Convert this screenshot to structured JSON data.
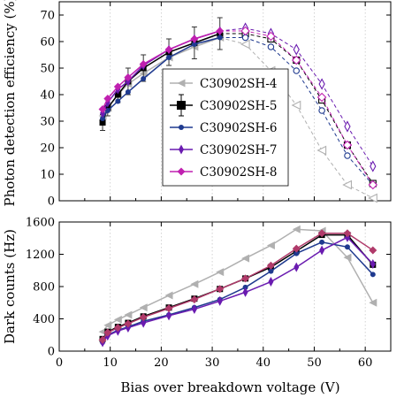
{
  "chart_data": [
    {
      "type": "line",
      "ylabel": "Photon detection efficiency (%)",
      "xlabel": "",
      "xlim": [
        0,
        65
      ],
      "ylim": [
        0,
        75
      ],
      "yticks": [
        0,
        10,
        20,
        30,
        40,
        50,
        60,
        70
      ],
      "grid": "vertical dotted",
      "legend_position": "center",
      "series": [
        {
          "name": "C30902SH-4",
          "color": "#b0b0b0",
          "marker": "triangle-left",
          "solid": [
            [
              8.5,
              32
            ],
            [
              9.5,
              35
            ],
            [
              11.5,
              40
            ],
            [
              13.5,
              44
            ],
            [
              16.5,
              48
            ],
            [
              21.5,
              54
            ],
            [
              26.5,
              58
            ],
            [
              31.5,
              61.5
            ]
          ],
          "dashed": [
            [
              31.5,
              61.5
            ],
            [
              36.5,
              59
            ],
            [
              41.5,
              49
            ],
            [
              46.5,
              36
            ],
            [
              51.5,
              19
            ],
            [
              56.5,
              6
            ],
            [
              61.5,
              1
            ]
          ]
        },
        {
          "name": "C30902SH-5",
          "color": "#000000",
          "marker": "square",
          "errorbars": true,
          "solid": [
            [
              8.5,
              29.5
            ],
            [
              9.5,
              35
            ],
            [
              11.5,
              40
            ],
            [
              13.5,
              45
            ],
            [
              16.5,
              50
            ],
            [
              21.5,
              56
            ],
            [
              26.5,
              59.5
            ],
            [
              31.5,
              63
            ]
          ],
          "errors": [
            3,
            3,
            3,
            5,
            5,
            5,
            6,
            6
          ],
          "dashed": [
            [
              31.5,
              63
            ],
            [
              36.5,
              63
            ],
            [
              41.5,
              61
            ],
            [
              46.5,
              53
            ],
            [
              51.5,
              38
            ],
            [
              56.5,
              21
            ],
            [
              61.5,
              6.5
            ]
          ]
        },
        {
          "name": "C30902SH-6",
          "color": "#1f3a8f",
          "marker": "circle",
          "solid": [
            [
              8.5,
              31
            ],
            [
              9.5,
              34
            ],
            [
              11.5,
              37.5
            ],
            [
              13.5,
              41
            ],
            [
              16.5,
              46
            ],
            [
              21.5,
              54
            ],
            [
              26.5,
              59
            ],
            [
              31.5,
              61.5
            ]
          ],
          "dashed": [
            [
              31.5,
              61.5
            ],
            [
              36.5,
              61.5
            ],
            [
              41.5,
              58
            ],
            [
              46.5,
              49
            ],
            [
              51.5,
              34
            ],
            [
              56.5,
              17
            ],
            [
              61.5,
              6
            ]
          ]
        },
        {
          "name": "C30902SH-7",
          "color": "#6a1bb0",
          "marker": "diamond-thin",
          "solid": [
            [
              8.5,
              33
            ],
            [
              9.5,
              37
            ],
            [
              11.5,
              42
            ],
            [
              13.5,
              45
            ],
            [
              16.5,
              51
            ],
            [
              21.5,
              57
            ],
            [
              26.5,
              61
            ],
            [
              31.5,
              64
            ]
          ],
          "dashed": [
            [
              31.5,
              64
            ],
            [
              36.5,
              65
            ],
            [
              41.5,
              63
            ],
            [
              46.5,
              57
            ],
            [
              51.5,
              44
            ],
            [
              56.5,
              28
            ],
            [
              61.5,
              13
            ]
          ]
        },
        {
          "name": "C30902SH-8",
          "color": "#c020b0",
          "marker": "diamond",
          "solid": [
            [
              8.5,
              34.5
            ],
            [
              9.5,
              38.5
            ],
            [
              11.5,
              43
            ],
            [
              13.5,
              46.5
            ],
            [
              16.5,
              51.5
            ],
            [
              21.5,
              57
            ],
            [
              26.5,
              61
            ],
            [
              31.5,
              64
            ]
          ],
          "dashed": [
            [
              31.5,
              64
            ],
            [
              36.5,
              64
            ],
            [
              41.5,
              62
            ],
            [
              46.5,
              53
            ],
            [
              51.5,
              39
            ],
            [
              56.5,
              21
            ],
            [
              61.5,
              6
            ]
          ]
        }
      ]
    },
    {
      "type": "line",
      "ylabel": "Dark counts (Hz)",
      "xlabel": "Bias over breakdown voltage (V)",
      "xlim": [
        0,
        65
      ],
      "ylim": [
        0,
        1600
      ],
      "xticks": [
        0,
        10,
        20,
        30,
        40,
        50,
        60
      ],
      "yticks": [
        0,
        400,
        800,
        1200,
        1600
      ],
      "grid": "vertical dotted",
      "series": [
        {
          "name": "C30902SH-4",
          "color": "#b0b0b0",
          "marker": "triangle-left",
          "points": [
            [
              8.5,
              240
            ],
            [
              9.5,
              320
            ],
            [
              11.5,
              390
            ],
            [
              13.5,
              450
            ],
            [
              16.5,
              540
            ],
            [
              21.5,
              690
            ],
            [
              26.5,
              830
            ],
            [
              31.5,
              980
            ],
            [
              36.5,
              1150
            ],
            [
              41.5,
              1310
            ],
            [
              46.5,
              1510
            ],
            [
              51.5,
              1490
            ],
            [
              56.5,
              1160
            ],
            [
              61.5,
              600
            ]
          ]
        },
        {
          "name": "C30902SH-5",
          "color": "#000000",
          "marker": "square",
          "points": [
            [
              8.5,
              150
            ],
            [
              9.5,
              240
            ],
            [
              11.5,
              300
            ],
            [
              13.5,
              350
            ],
            [
              16.5,
              430
            ],
            [
              21.5,
              540
            ],
            [
              26.5,
              650
            ],
            [
              31.5,
              770
            ],
            [
              36.5,
              900
            ],
            [
              41.5,
              1040
            ],
            [
              46.5,
              1240
            ],
            [
              51.5,
              1440
            ],
            [
              56.5,
              1440
            ],
            [
              61.5,
              1070
            ]
          ]
        },
        {
          "name": "C30902SH-6",
          "color": "#1f3a8f",
          "marker": "circle",
          "points": [
            [
              8.5,
              110
            ],
            [
              9.5,
              200
            ],
            [
              11.5,
              260
            ],
            [
              13.5,
              300
            ],
            [
              16.5,
              370
            ],
            [
              21.5,
              450
            ],
            [
              26.5,
              540
            ],
            [
              31.5,
              640
            ],
            [
              36.5,
              790
            ],
            [
              41.5,
              990
            ],
            [
              46.5,
              1210
            ],
            [
              51.5,
              1350
            ],
            [
              56.5,
              1290
            ],
            [
              61.5,
              950
            ]
          ]
        },
        {
          "name": "C30902SH-7",
          "color": "#6a1bb0",
          "marker": "diamond-thin",
          "points": [
            [
              8.5,
              110
            ],
            [
              9.5,
              190
            ],
            [
              11.5,
              250
            ],
            [
              13.5,
              290
            ],
            [
              16.5,
              350
            ],
            [
              21.5,
              440
            ],
            [
              26.5,
              520
            ],
            [
              31.5,
              620
            ],
            [
              36.5,
              730
            ],
            [
              41.5,
              860
            ],
            [
              46.5,
              1040
            ],
            [
              51.5,
              1250
            ],
            [
              56.5,
              1410
            ],
            [
              61.5,
              1080
            ]
          ]
        },
        {
          "name": "C30902SH-8",
          "color": "#b03a6a",
          "marker": "diamond",
          "points": [
            [
              8.5,
              140
            ],
            [
              9.5,
              230
            ],
            [
              11.5,
              290
            ],
            [
              13.5,
              340
            ],
            [
              16.5,
              420
            ],
            [
              21.5,
              530
            ],
            [
              26.5,
              640
            ],
            [
              31.5,
              770
            ],
            [
              36.5,
              900
            ],
            [
              41.5,
              1060
            ],
            [
              46.5,
              1270
            ],
            [
              51.5,
              1460
            ],
            [
              56.5,
              1460
            ],
            [
              61.5,
              1250
            ]
          ]
        }
      ]
    }
  ]
}
